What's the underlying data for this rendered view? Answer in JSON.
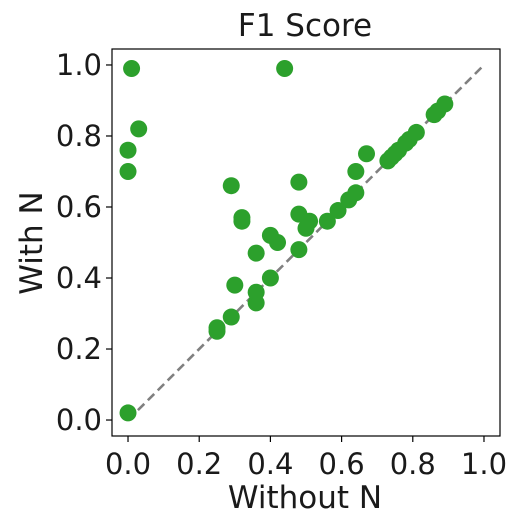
{
  "chart_data": {
    "type": "scatter",
    "title": "F1 Score",
    "xlabel": "Without N",
    "ylabel": "With N",
    "xlim": [
      -0.045,
      1.045
    ],
    "ylim": [
      -0.045,
      1.045
    ],
    "xticks": [
      "0.0",
      "0.2",
      "0.4",
      "0.6",
      "0.8",
      "1.0"
    ],
    "yticks": [
      "0.0",
      "0.2",
      "0.4",
      "0.6",
      "0.8",
      "1.0"
    ],
    "xtick_values": [
      0.0,
      0.2,
      0.4,
      0.6,
      0.8,
      1.0
    ],
    "ytick_values": [
      0.0,
      0.2,
      0.4,
      0.6,
      0.8,
      1.0
    ],
    "grid": false,
    "reference_line": {
      "from": [
        0,
        0
      ],
      "to": [
        1,
        1
      ],
      "style": "dashed",
      "color": "#808080"
    },
    "point_color": "#2ca02c",
    "points": [
      {
        "x": 0.0,
        "y": 0.02
      },
      {
        "x": 0.0,
        "y": 0.7
      },
      {
        "x": 0.0,
        "y": 0.76
      },
      {
        "x": 0.01,
        "y": 0.99
      },
      {
        "x": 0.03,
        "y": 0.82
      },
      {
        "x": 0.25,
        "y": 0.25
      },
      {
        "x": 0.25,
        "y": 0.26
      },
      {
        "x": 0.29,
        "y": 0.29
      },
      {
        "x": 0.29,
        "y": 0.66
      },
      {
        "x": 0.3,
        "y": 0.38
      },
      {
        "x": 0.32,
        "y": 0.56
      },
      {
        "x": 0.32,
        "y": 0.57
      },
      {
        "x": 0.36,
        "y": 0.33
      },
      {
        "x": 0.36,
        "y": 0.36
      },
      {
        "x": 0.36,
        "y": 0.47
      },
      {
        "x": 0.4,
        "y": 0.4
      },
      {
        "x": 0.4,
        "y": 0.52
      },
      {
        "x": 0.42,
        "y": 0.5
      },
      {
        "x": 0.44,
        "y": 0.99
      },
      {
        "x": 0.48,
        "y": 0.48
      },
      {
        "x": 0.48,
        "y": 0.58
      },
      {
        "x": 0.48,
        "y": 0.67
      },
      {
        "x": 0.5,
        "y": 0.54
      },
      {
        "x": 0.51,
        "y": 0.56
      },
      {
        "x": 0.56,
        "y": 0.56
      },
      {
        "x": 0.59,
        "y": 0.59
      },
      {
        "x": 0.62,
        "y": 0.62
      },
      {
        "x": 0.64,
        "y": 0.64
      },
      {
        "x": 0.64,
        "y": 0.7
      },
      {
        "x": 0.67,
        "y": 0.75
      },
      {
        "x": 0.73,
        "y": 0.73
      },
      {
        "x": 0.74,
        "y": 0.74
      },
      {
        "x": 0.75,
        "y": 0.75
      },
      {
        "x": 0.76,
        "y": 0.76
      },
      {
        "x": 0.78,
        "y": 0.78
      },
      {
        "x": 0.79,
        "y": 0.79
      },
      {
        "x": 0.81,
        "y": 0.81
      },
      {
        "x": 0.86,
        "y": 0.86
      },
      {
        "x": 0.87,
        "y": 0.87
      },
      {
        "x": 0.89,
        "y": 0.89
      }
    ]
  }
}
